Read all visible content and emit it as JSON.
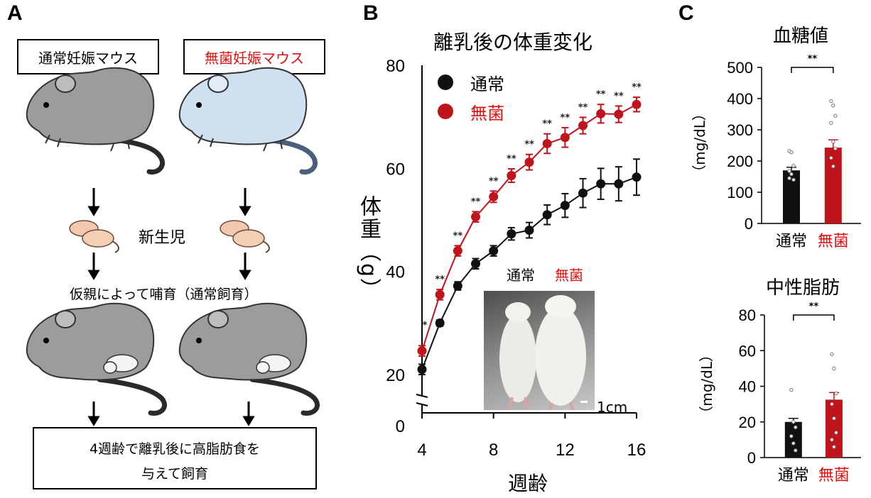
{
  "panel_a": {
    "letter": "A",
    "normal_box": "通常妊娠マウス",
    "germfree_box": "無菌妊娠マウス",
    "newborn": "新生児",
    "foster": "仮親によって哺育（通常飼育）",
    "final_line1": "4週齢で離乳後に高脂肪食を",
    "final_line2": "与えて飼育"
  },
  "panel_b": {
    "letter": "B",
    "title": "離乳後の体重変化",
    "ylabel": "体重（g）",
    "xlabel": "週齢",
    "legend_normal": "通常",
    "legend_germfree": "無菌",
    "photo_label_normal": "通常",
    "photo_label_germfree": "無菌",
    "scale": "1cm"
  },
  "panel_c": {
    "letter": "C",
    "glucose_title": "血糖値",
    "fat_title": "中性脂肪",
    "unit": "（mg/dL）",
    "sig": "**"
  },
  "colors": {
    "normal": "#111111",
    "germfree": "#c0141c",
    "red_text": "#e01010"
  },
  "chart_data": [
    {
      "type": "line",
      "title": "離乳後の体重変化",
      "xlabel": "週齢",
      "ylabel": "体重（g）",
      "xlim": [
        4,
        16
      ],
      "ylim": [
        0,
        80
      ],
      "axis_break": true,
      "x_ticks": [
        "4",
        "8",
        "12",
        "16"
      ],
      "y_ticks": [
        "0",
        "20",
        "40",
        "60",
        "80"
      ],
      "x": [
        4,
        5,
        6,
        7,
        8,
        9,
        10,
        11,
        12,
        13,
        14,
        15,
        16
      ],
      "legend": "top-left",
      "series": [
        {
          "name": "通常",
          "color": "#111111",
          "values": [
            21,
            30,
            37.2,
            41.5,
            44,
            47.3,
            48,
            51,
            52.8,
            55.2,
            57,
            57,
            58.3
          ],
          "error": [
            1,
            0.6,
            0.8,
            1,
            1,
            1.2,
            1.5,
            1.9,
            2.3,
            2.8,
            3,
            3.3,
            3.5
          ]
        },
        {
          "name": "無菌",
          "color": "#c0141c",
          "values": [
            24.6,
            35.5,
            44,
            50.6,
            54.5,
            58.6,
            61.2,
            64.8,
            66,
            68.3,
            70.6,
            70.5,
            72.4
          ],
          "error": [
            1,
            1,
            1,
            1,
            1.1,
            1.3,
            1.5,
            1.9,
            1.9,
            1.6,
            1.8,
            1.6,
            1.4
          ]
        }
      ],
      "significance": [
        "*",
        "**",
        "**",
        "**",
        "**",
        "**",
        "**",
        "**",
        "**",
        "**",
        "**",
        "**",
        "**"
      ],
      "significance_x": [
        4,
        5,
        6,
        7,
        8,
        9,
        10,
        11,
        12,
        13,
        14,
        15,
        16
      ]
    },
    {
      "type": "bar",
      "title": "血糖値",
      "ylabel": "（mg/dL）",
      "categories": [
        "通常",
        "無菌"
      ],
      "values": [
        170,
        243
      ],
      "errors": [
        10,
        25
      ],
      "ylim": [
        0,
        500
      ],
      "y_ticks": [
        "0",
        "100",
        "200",
        "300",
        "400",
        "500"
      ],
      "colors": [
        "#111111",
        "#c0141c"
      ],
      "points": [
        [
          232,
          228,
          185,
          168,
          158,
          140,
          145
        ],
        [
          392,
          378,
          345,
          322,
          262,
          240,
          210,
          183
        ]
      ],
      "significance": "**"
    },
    {
      "type": "bar",
      "title": "中性脂肪",
      "ylabel": "（mg/dL）",
      "categories": [
        "通常",
        "無菌"
      ],
      "values": [
        20,
        32.5
      ],
      "errors": [
        2,
        4
      ],
      "ylim": [
        0,
        80
      ],
      "y_ticks": [
        "0",
        "20",
        "40",
        "60",
        "80"
      ],
      "colors": [
        "#111111",
        "#c0141c"
      ],
      "points": [
        [
          38,
          20,
          17,
          12,
          8,
          4
        ],
        [
          58,
          50,
          36,
          30,
          22,
          14,
          10,
          6
        ]
      ],
      "significance": "**"
    }
  ]
}
